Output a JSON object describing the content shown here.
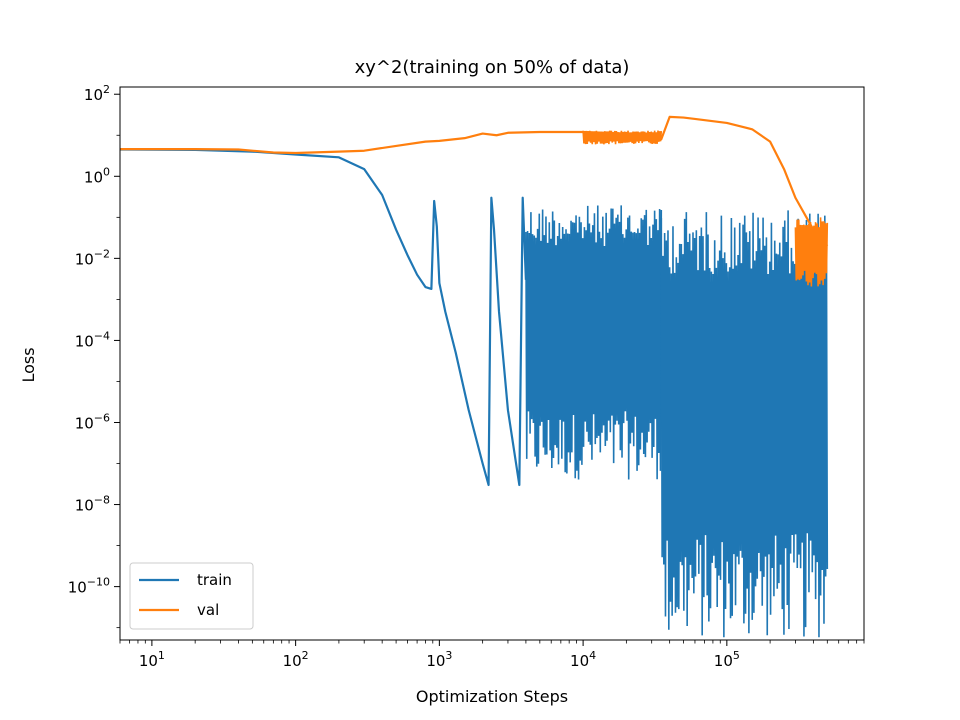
{
  "chart_data": {
    "type": "line",
    "title": "xy^2(training on 50% of data)",
    "xlabel": "Optimization Steps",
    "ylabel": "Loss",
    "xscale": "log",
    "yscale": "log",
    "xlim": [
      6,
      900000
    ],
    "ylim": [
      5e-12,
      150
    ],
    "grid": false,
    "legend_position": "lower-left",
    "x_tick_labels": [
      "10^1",
      "10^2",
      "10^3",
      "10^4",
      "10^5"
    ],
    "y_tick_labels": [
      "10^-10",
      "10^-8",
      "10^-6",
      "10^-4",
      "10^-2",
      "10^0",
      "10^2"
    ],
    "series": [
      {
        "name": "train",
        "color": "#1f77b4",
        "x": [
          6,
          20,
          50,
          100,
          200,
          300,
          400,
          500,
          600,
          700,
          800,
          880,
          920,
          960,
          1000,
          1100,
          1300,
          1600,
          2000,
          2200,
          2300,
          2400,
          2600,
          3000,
          3600,
          3800,
          4000
        ],
        "y": [
          4.5,
          4.4,
          4.0,
          3.4,
          2.9,
          1.5,
          0.35,
          0.05,
          0.012,
          0.004,
          0.002,
          0.0018,
          0.25,
          0.06,
          0.0025,
          0.0005,
          5e-05,
          2e-06,
          1e-07,
          3e-08,
          0.3,
          0.05,
          0.0005,
          2e-06,
          3e-08,
          0.3,
          0.003
        ],
        "oscillation_segments": [
          {
            "x_range": [
              4000,
              35000
            ],
            "low": 4e-08,
            "high": 0.2
          },
          {
            "x_range": [
              35000,
              500000
            ],
            "low": 5e-12,
            "high": 0.15
          }
        ]
      },
      {
        "name": "val",
        "color": "#ff7f0e",
        "x": [
          6,
          20,
          40,
          70,
          100,
          200,
          300,
          500,
          800,
          1000,
          1500,
          2000,
          2500,
          3000,
          5000,
          10000,
          20000,
          30000,
          35000,
          40000,
          50000,
          60000,
          80000,
          100000,
          150000,
          200000,
          250000,
          300000,
          400000,
          500000
        ],
        "y": [
          4.6,
          4.6,
          4.5,
          3.8,
          3.7,
          4.0,
          4.2,
          5.5,
          7.0,
          7.3,
          8.5,
          11,
          10,
          11.5,
          12,
          12,
          11,
          11,
          8,
          28,
          27,
          25,
          22,
          20,
          14,
          7,
          1.5,
          0.3,
          0.05,
          0.02
        ],
        "oscillation_segments": [
          {
            "x_range": [
              10000,
              35000
            ],
            "low": 6,
            "high": 13
          },
          {
            "x_range": [
              300000,
              500000
            ],
            "low": 0.002,
            "high": 0.1
          }
        ]
      }
    ]
  }
}
